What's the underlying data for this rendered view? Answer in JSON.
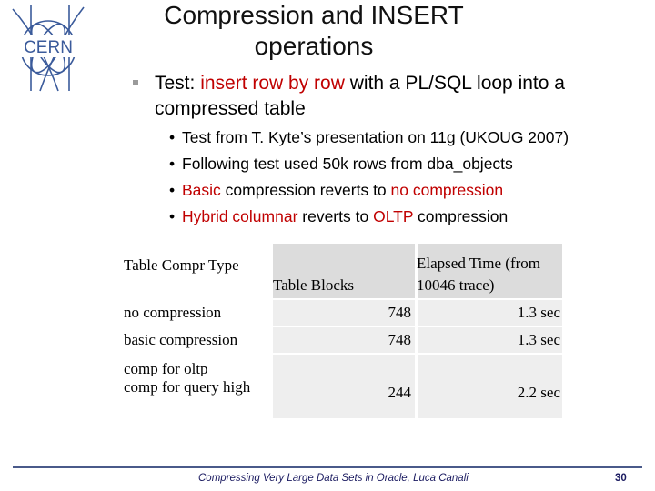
{
  "logo": {
    "text": "CERN"
  },
  "title": "Compression and INSERT operations",
  "bullet": {
    "lead": "Test: ",
    "highlight": "insert row by row",
    "rest": " with a PL/SQL loop into a compressed table"
  },
  "subbullets": [
    {
      "parts": [
        {
          "t": "Test from T. Kyte’s presentation on 11g (UKOUG 2007)",
          "red": false
        }
      ]
    },
    {
      "parts": [
        {
          "t": "Following test used 50k rows from dba_objects",
          "red": false
        }
      ]
    },
    {
      "parts": [
        {
          "t": "Basic",
          "red": true
        },
        {
          "t": " compression reverts to ",
          "red": false
        },
        {
          "t": "no compression",
          "red": true
        }
      ]
    },
    {
      "parts": [
        {
          "t": "Hybrid columnar",
          "red": true
        },
        {
          "t": " reverts to ",
          "red": false
        },
        {
          "t": "OLTP",
          "red": true
        },
        {
          "t": " compression",
          "red": false
        }
      ]
    }
  ],
  "table": {
    "headers": [
      "Table Compr Type",
      "Table Blocks",
      "Elapsed Time (from 10046 trace)"
    ],
    "rows": [
      [
        "no compression",
        "748",
        "1.3 sec"
      ],
      [
        "basic compression",
        "748",
        "1.3 sec"
      ],
      [
        "comp for oltp",
        "244",
        "2.2 sec"
      ],
      [
        "comp for query high",
        "244",
        "2.2 sec"
      ]
    ]
  },
  "footer": {
    "text": "Compressing Very Large Data Sets in Oracle, Luca Canali",
    "page": "30"
  },
  "colors": {
    "accent_red": "#c00000",
    "rule": "#4a5a8a"
  }
}
